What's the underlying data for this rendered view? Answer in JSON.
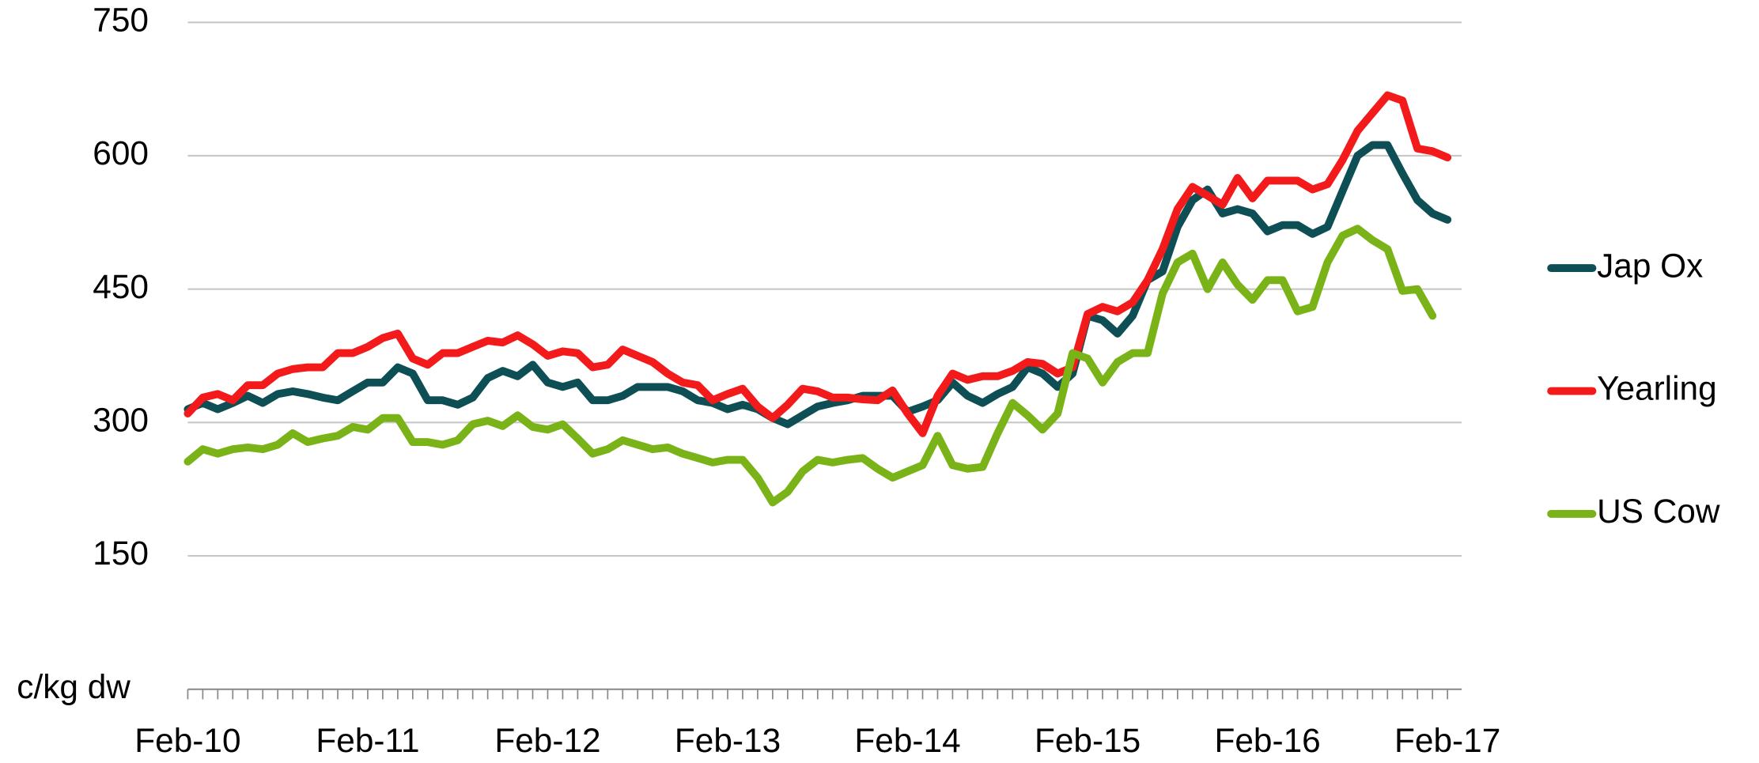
{
  "chart_data": {
    "type": "line",
    "y_axis_label": "c/kg dw",
    "categories": [
      "Feb-10",
      null,
      null,
      null,
      null,
      null,
      null,
      null,
      null,
      null,
      null,
      null,
      "Feb-11",
      null,
      null,
      null,
      null,
      null,
      null,
      null,
      null,
      null,
      null,
      null,
      "Feb-12",
      null,
      null,
      null,
      null,
      null,
      null,
      null,
      null,
      null,
      null,
      null,
      "Feb-13",
      null,
      null,
      null,
      null,
      null,
      null,
      null,
      null,
      null,
      null,
      null,
      "Feb-14",
      null,
      null,
      null,
      null,
      null,
      null,
      null,
      null,
      null,
      null,
      null,
      "Feb-15",
      null,
      null,
      null,
      null,
      null,
      null,
      null,
      null,
      null,
      null,
      null,
      "Feb-16",
      null,
      null,
      null,
      null,
      null,
      null,
      null,
      null,
      null,
      null,
      null,
      "Feb-17"
    ],
    "series": [
      {
        "name": "Jap Ox",
        "color": "#0d4f55",
        "values": [
          315,
          322,
          315,
          322,
          330,
          322,
          332,
          335,
          332,
          328,
          325,
          335,
          345,
          345,
          362,
          355,
          325,
          325,
          320,
          328,
          350,
          358,
          352,
          365,
          345,
          340,
          345,
          325,
          325,
          330,
          340,
          340,
          340,
          335,
          325,
          322,
          315,
          320,
          315,
          305,
          298,
          308,
          318,
          322,
          325,
          330,
          330,
          330,
          312,
          318,
          325,
          345,
          330,
          322,
          332,
          340,
          362,
          355,
          340,
          355,
          420,
          415,
          400,
          420,
          460,
          470,
          520,
          550,
          562,
          535,
          540,
          535,
          515,
          522,
          522,
          512,
          520,
          560,
          600,
          612,
          612,
          580,
          550,
          535,
          528
        ]
      },
      {
        "name": "Yearling",
        "color": "#f21a1a",
        "values": [
          310,
          328,
          332,
          325,
          342,
          342,
          355,
          360,
          362,
          362,
          378,
          378,
          385,
          395,
          400,
          372,
          365,
          378,
          378,
          385,
          392,
          390,
          398,
          388,
          375,
          380,
          378,
          362,
          365,
          382,
          375,
          368,
          355,
          345,
          342,
          325,
          332,
          338,
          318,
          305,
          320,
          338,
          335,
          328,
          328,
          326,
          325,
          336,
          310,
          288,
          330,
          355,
          348,
          352,
          352,
          358,
          368,
          366,
          355,
          362,
          422,
          430,
          425,
          435,
          460,
          495,
          540,
          565,
          555,
          545,
          575,
          552,
          572,
          572,
          572,
          562,
          568,
          595,
          628,
          648,
          668,
          662,
          608,
          605,
          598
        ]
      },
      {
        "name": "US Cow",
        "color": "#7ab317",
        "values": [
          256,
          270,
          265,
          270,
          272,
          270,
          275,
          288,
          278,
          282,
          285,
          295,
          292,
          305,
          305,
          278,
          278,
          275,
          280,
          298,
          302,
          296,
          308,
          295,
          292,
          298,
          282,
          265,
          270,
          280,
          275,
          270,
          272,
          265,
          260,
          255,
          258,
          258,
          238,
          210,
          222,
          245,
          258,
          255,
          258,
          260,
          248,
          238,
          245,
          252,
          285,
          252,
          248,
          250,
          288,
          322,
          308,
          292,
          310,
          378,
          372,
          345,
          368,
          378,
          378,
          445,
          480,
          490,
          450,
          480,
          455,
          438,
          460,
          460,
          425,
          430,
          480,
          510,
          518,
          505,
          495,
          448,
          450,
          420,
          null
        ]
      }
    ],
    "ylim": [
      0,
      750
    ],
    "yticks": [
      150,
      300,
      450,
      600,
      750
    ],
    "grid": true,
    "legend": "right"
  }
}
